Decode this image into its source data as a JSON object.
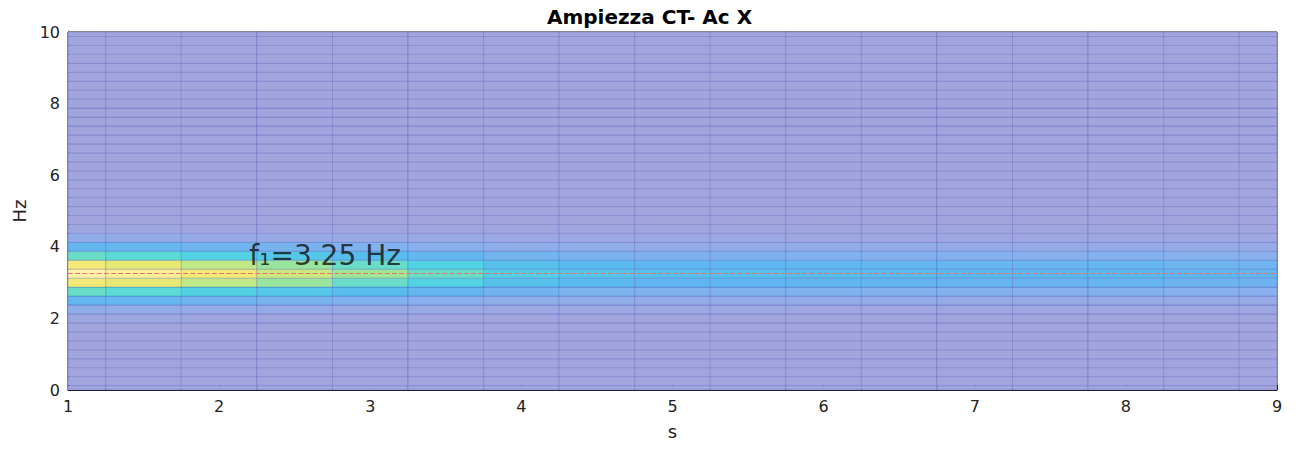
{
  "chart_data": {
    "type": "heatmap",
    "title": "Ampiezza CT- Ac X",
    "x_label": "s",
    "y_label": "Hz",
    "xlim": [
      1,
      9
    ],
    "xticks": [
      1,
      2,
      3,
      4,
      5,
      6,
      7,
      8,
      9
    ],
    "ylim": [
      0,
      10
    ],
    "yticks": [
      0,
      2,
      4,
      6,
      8,
      10
    ],
    "grid": false,
    "x": [
      1,
      1.5,
      2,
      2.5,
      3,
      3.5,
      4,
      4.5,
      5,
      5.5,
      6,
      6.5,
      7,
      7.5,
      8,
      8.5,
      9
    ],
    "y": [
      0,
      0.25,
      0.5,
      0.75,
      1,
      1.25,
      1.5,
      1.75,
      2,
      2.25,
      2.5,
      2.75,
      3,
      3.25,
      3.5,
      3.75,
      4,
      4.25,
      4.5,
      4.75,
      5,
      5.25,
      5.5,
      5.75,
      6,
      6.25,
      6.5,
      6.75,
      7,
      7.25,
      7.5,
      7.75,
      8,
      8.25,
      8.5,
      8.75,
      9,
      9.25,
      9.5,
      9.75,
      10
    ],
    "zlim": [
      0,
      1
    ],
    "z": [
      [
        0.01,
        0.01,
        0.01,
        0.01,
        0.01,
        0.01,
        0.01,
        0.01,
        0.01,
        0.01,
        0.01,
        0.01,
        0.01,
        0.01,
        0.01,
        0.01,
        0.01
      ],
      [
        0.01,
        0.01,
        0.01,
        0.01,
        0.01,
        0.01,
        0.01,
        0.01,
        0.01,
        0.01,
        0.01,
        0.01,
        0.01,
        0.01,
        0.01,
        0.01,
        0.01
      ],
      [
        0.01,
        0.01,
        0.01,
        0.01,
        0.01,
        0.01,
        0.01,
        0.01,
        0.01,
        0.01,
        0.01,
        0.01,
        0.01,
        0.01,
        0.01,
        0.01,
        0.01
      ],
      [
        0.01,
        0.01,
        0.01,
        0.01,
        0.01,
        0.01,
        0.01,
        0.01,
        0.01,
        0.01,
        0.01,
        0.01,
        0.01,
        0.01,
        0.01,
        0.01,
        0.01
      ],
      [
        0.01,
        0.01,
        0.01,
        0.01,
        0.01,
        0.01,
        0.01,
        0.01,
        0.01,
        0.01,
        0.01,
        0.01,
        0.01,
        0.01,
        0.01,
        0.01,
        0.01
      ],
      [
        0.01,
        0.01,
        0.01,
        0.01,
        0.01,
        0.01,
        0.01,
        0.01,
        0.01,
        0.01,
        0.01,
        0.01,
        0.01,
        0.01,
        0.01,
        0.01,
        0.01
      ],
      [
        0.01,
        0.01,
        0.01,
        0.01,
        0.01,
        0.01,
        0.01,
        0.01,
        0.01,
        0.01,
        0.01,
        0.01,
        0.01,
        0.01,
        0.01,
        0.01,
        0.01
      ],
      [
        0.01,
        0.01,
        0.01,
        0.01,
        0.01,
        0.01,
        0.01,
        0.01,
        0.01,
        0.01,
        0.01,
        0.01,
        0.01,
        0.01,
        0.01,
        0.01,
        0.01
      ],
      [
        0.04,
        0.04,
        0.03,
        0.03,
        0.03,
        0.02,
        0.02,
        0.02,
        0.02,
        0.02,
        0.02,
        0.02,
        0.02,
        0.02,
        0.02,
        0.02,
        0.02
      ],
      [
        0.12,
        0.11,
        0.1,
        0.09,
        0.08,
        0.07,
        0.05,
        0.05,
        0.05,
        0.05,
        0.04,
        0.04,
        0.04,
        0.04,
        0.04,
        0.04,
        0.04
      ],
      [
        0.3,
        0.29,
        0.26,
        0.23,
        0.2,
        0.17,
        0.14,
        0.12,
        0.11,
        0.11,
        0.11,
        0.11,
        0.1,
        0.1,
        0.1,
        0.1,
        0.09
      ],
      [
        0.55,
        0.52,
        0.47,
        0.41,
        0.36,
        0.3,
        0.25,
        0.22,
        0.21,
        0.21,
        0.2,
        0.19,
        0.19,
        0.18,
        0.19,
        0.18,
        0.17
      ],
      [
        0.85,
        0.81,
        0.72,
        0.64,
        0.55,
        0.47,
        0.38,
        0.34,
        0.32,
        0.32,
        0.31,
        0.3,
        0.29,
        0.28,
        0.29,
        0.27,
        0.26
      ],
      [
        1.0,
        0.95,
        0.85,
        0.75,
        0.65,
        0.55,
        0.45,
        0.4,
        0.38,
        0.38,
        0.36,
        0.35,
        0.34,
        0.33,
        0.34,
        0.32,
        0.3
      ],
      [
        0.85,
        0.81,
        0.72,
        0.64,
        0.55,
        0.47,
        0.38,
        0.34,
        0.32,
        0.32,
        0.31,
        0.3,
        0.29,
        0.28,
        0.29,
        0.27,
        0.26
      ],
      [
        0.55,
        0.52,
        0.47,
        0.41,
        0.36,
        0.3,
        0.25,
        0.22,
        0.21,
        0.21,
        0.2,
        0.19,
        0.19,
        0.18,
        0.19,
        0.18,
        0.17
      ],
      [
        0.3,
        0.29,
        0.26,
        0.23,
        0.2,
        0.17,
        0.14,
        0.12,
        0.11,
        0.11,
        0.11,
        0.11,
        0.1,
        0.1,
        0.1,
        0.1,
        0.09
      ],
      [
        0.12,
        0.11,
        0.1,
        0.09,
        0.08,
        0.07,
        0.05,
        0.05,
        0.05,
        0.05,
        0.04,
        0.04,
        0.04,
        0.04,
        0.04,
        0.04,
        0.04
      ],
      [
        0.04,
        0.04,
        0.03,
        0.03,
        0.03,
        0.02,
        0.02,
        0.02,
        0.02,
        0.02,
        0.02,
        0.02,
        0.02,
        0.02,
        0.02,
        0.02,
        0.02
      ],
      [
        0.01,
        0.01,
        0.01,
        0.01,
        0.01,
        0.01,
        0.01,
        0.01,
        0.01,
        0.01,
        0.01,
        0.01,
        0.01,
        0.01,
        0.01,
        0.01,
        0.01
      ],
      [
        0.01,
        0.01,
        0.01,
        0.01,
        0.01,
        0.01,
        0.01,
        0.01,
        0.01,
        0.01,
        0.01,
        0.01,
        0.01,
        0.01,
        0.01,
        0.01,
        0.01
      ],
      [
        0.01,
        0.01,
        0.01,
        0.01,
        0.01,
        0.01,
        0.01,
        0.01,
        0.01,
        0.01,
        0.01,
        0.01,
        0.01,
        0.01,
        0.01,
        0.01,
        0.01
      ],
      [
        0.01,
        0.01,
        0.01,
        0.01,
        0.01,
        0.01,
        0.01,
        0.01,
        0.01,
        0.01,
        0.01,
        0.01,
        0.01,
        0.01,
        0.01,
        0.01,
        0.01
      ],
      [
        0.01,
        0.01,
        0.01,
        0.01,
        0.01,
        0.01,
        0.01,
        0.01,
        0.01,
        0.01,
        0.01,
        0.01,
        0.01,
        0.01,
        0.01,
        0.01,
        0.01
      ],
      [
        0.01,
        0.01,
        0.01,
        0.01,
        0.01,
        0.01,
        0.01,
        0.01,
        0.01,
        0.01,
        0.01,
        0.01,
        0.01,
        0.01,
        0.01,
        0.01,
        0.01
      ],
      [
        0.01,
        0.01,
        0.01,
        0.01,
        0.01,
        0.01,
        0.01,
        0.01,
        0.01,
        0.01,
        0.01,
        0.01,
        0.01,
        0.01,
        0.01,
        0.01,
        0.01
      ],
      [
        0.01,
        0.01,
        0.01,
        0.01,
        0.01,
        0.01,
        0.01,
        0.01,
        0.01,
        0.01,
        0.01,
        0.01,
        0.01,
        0.01,
        0.01,
        0.01,
        0.01
      ],
      [
        0.01,
        0.01,
        0.01,
        0.01,
        0.01,
        0.01,
        0.01,
        0.01,
        0.01,
        0.01,
        0.01,
        0.01,
        0.01,
        0.01,
        0.01,
        0.01,
        0.01
      ],
      [
        0.01,
        0.01,
        0.01,
        0.01,
        0.01,
        0.01,
        0.01,
        0.01,
        0.01,
        0.01,
        0.01,
        0.01,
        0.01,
        0.01,
        0.01,
        0.01,
        0.01
      ],
      [
        0.01,
        0.01,
        0.01,
        0.01,
        0.01,
        0.01,
        0.01,
        0.01,
        0.01,
        0.01,
        0.01,
        0.01,
        0.01,
        0.01,
        0.01,
        0.01,
        0.01
      ],
      [
        0.01,
        0.01,
        0.01,
        0.01,
        0.01,
        0.01,
        0.01,
        0.01,
        0.01,
        0.01,
        0.01,
        0.01,
        0.01,
        0.01,
        0.01,
        0.01,
        0.01
      ],
      [
        0.01,
        0.01,
        0.01,
        0.01,
        0.01,
        0.01,
        0.01,
        0.01,
        0.01,
        0.01,
        0.01,
        0.01,
        0.01,
        0.01,
        0.01,
        0.01,
        0.01
      ],
      [
        0.01,
        0.01,
        0.01,
        0.01,
        0.01,
        0.01,
        0.01,
        0.01,
        0.01,
        0.01,
        0.01,
        0.01,
        0.01,
        0.01,
        0.01,
        0.01,
        0.01
      ],
      [
        0.01,
        0.01,
        0.01,
        0.01,
        0.01,
        0.01,
        0.01,
        0.01,
        0.01,
        0.01,
        0.01,
        0.01,
        0.01,
        0.01,
        0.01,
        0.01,
        0.01
      ],
      [
        0.01,
        0.01,
        0.01,
        0.01,
        0.01,
        0.01,
        0.01,
        0.01,
        0.01,
        0.01,
        0.01,
        0.01,
        0.01,
        0.01,
        0.01,
        0.01,
        0.01
      ],
      [
        0.01,
        0.01,
        0.01,
        0.01,
        0.01,
        0.01,
        0.01,
        0.01,
        0.01,
        0.01,
        0.01,
        0.01,
        0.01,
        0.01,
        0.01,
        0.01,
        0.01
      ],
      [
        0.01,
        0.01,
        0.01,
        0.01,
        0.01,
        0.01,
        0.01,
        0.01,
        0.01,
        0.01,
        0.01,
        0.01,
        0.01,
        0.01,
        0.01,
        0.01,
        0.01
      ],
      [
        0.01,
        0.01,
        0.01,
        0.01,
        0.01,
        0.01,
        0.01,
        0.01,
        0.01,
        0.01,
        0.01,
        0.01,
        0.01,
        0.01,
        0.01,
        0.01,
        0.01
      ],
      [
        0.01,
        0.01,
        0.01,
        0.01,
        0.01,
        0.01,
        0.01,
        0.01,
        0.01,
        0.01,
        0.01,
        0.01,
        0.01,
        0.01,
        0.01,
        0.01,
        0.01
      ],
      [
        0.01,
        0.01,
        0.01,
        0.01,
        0.01,
        0.01,
        0.01,
        0.01,
        0.01,
        0.01,
        0.01,
        0.01,
        0.01,
        0.01,
        0.01,
        0.01,
        0.01
      ],
      [
        0.01,
        0.01,
        0.01,
        0.01,
        0.01,
        0.01,
        0.01,
        0.01,
        0.01,
        0.01,
        0.01,
        0.01,
        0.01,
        0.01,
        0.01,
        0.01,
        0.01
      ]
    ],
    "reference_line": {
      "value": 3.25,
      "color": "#e8706a",
      "line_style": "dashed"
    },
    "annotations": [
      {
        "text": "f₁=3.25 Hz",
        "x": 2.2,
        "y": 3.75
      }
    ]
  }
}
